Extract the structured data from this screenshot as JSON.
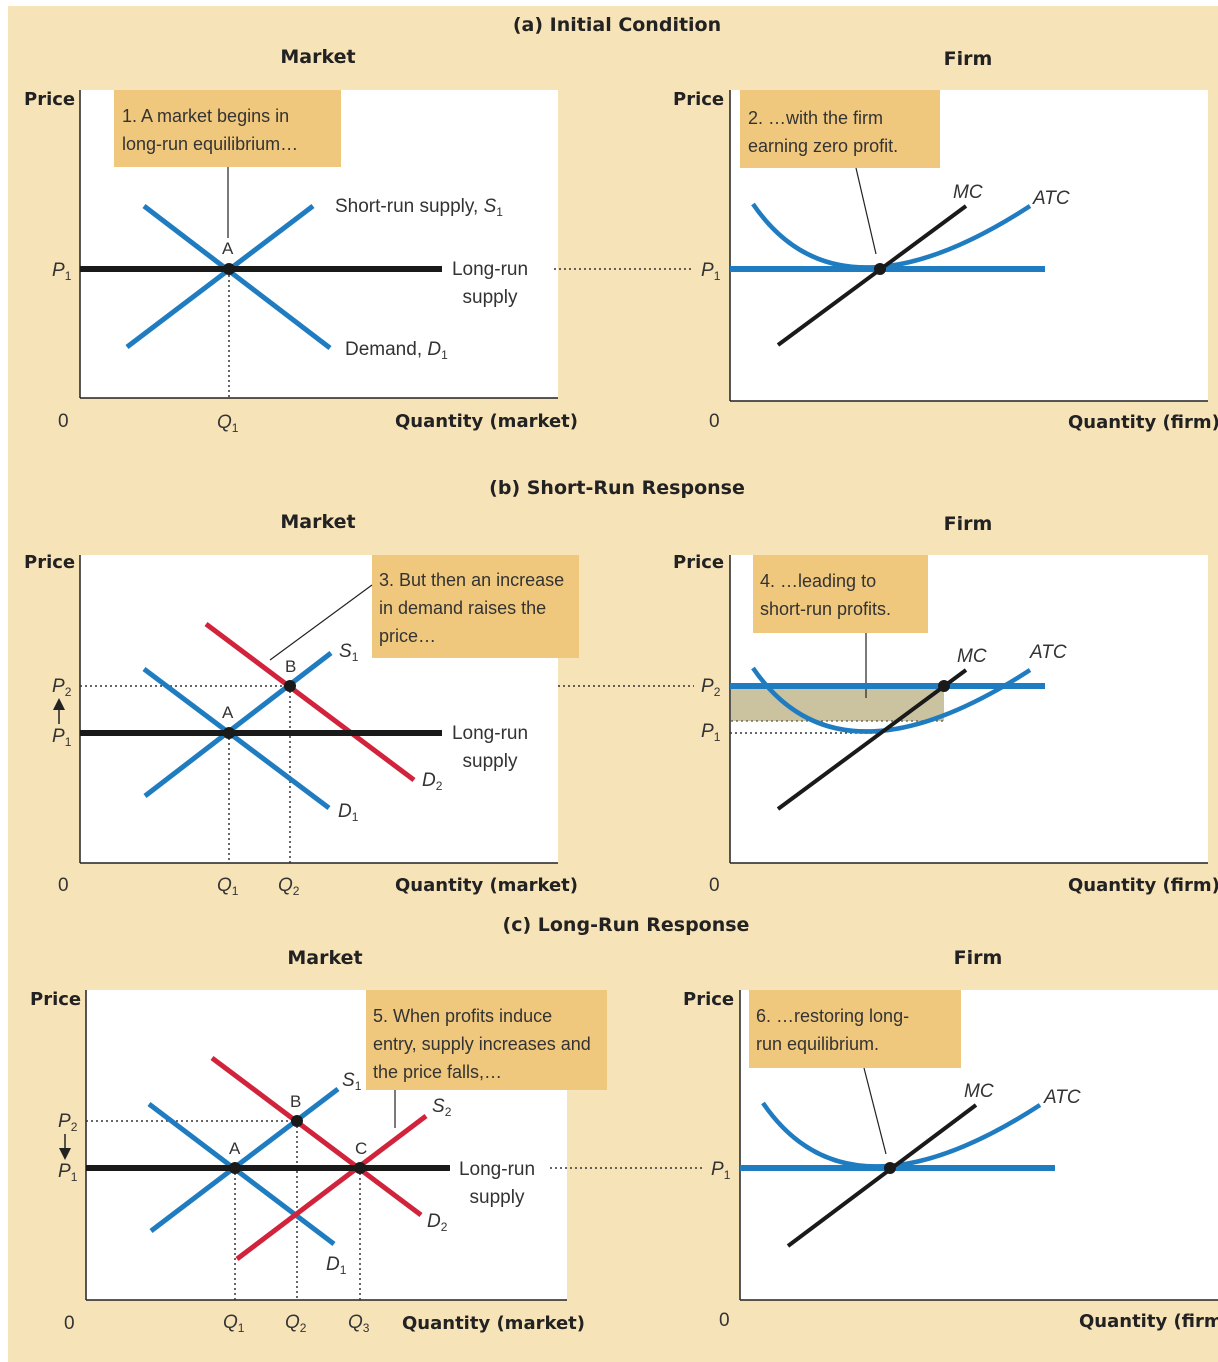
{
  "colors": {
    "background": "#f7e3b8",
    "plot": "#ffffff",
    "callout": "#efc77d",
    "blue": "#1f7cc1",
    "red": "#d1233b",
    "black": "#1a1a1a",
    "profit": "#cbc3a0"
  },
  "panels": {
    "a": {
      "title": "(a) Initial Condition",
      "market": {
        "heading": "Market",
        "price_label": "Price",
        "quantity_label": "Quantity (market)",
        "origin": "0",
        "callout": [
          "1. A market begins in",
          "long-run equilibrium…"
        ],
        "supply_label": "Short-run supply, ",
        "demand_label": "Demand, ",
        "lr_supply": [
          "Long-run",
          "supply"
        ],
        "point_a": "A",
        "p1": "P",
        "q1": "Q"
      },
      "firm": {
        "heading": "Firm",
        "price_label": "Price",
        "quantity_label": "Quantity (firm)",
        "origin": "0",
        "callout": [
          "2. …with the firm",
          "earning zero profit."
        ],
        "mc": "MC",
        "atc": "ATC",
        "p1": "P"
      }
    },
    "b": {
      "title": "(b) Short-Run Response",
      "market": {
        "heading": "Market",
        "price_label": "Price",
        "quantity_label": "Quantity (market)",
        "origin": "0",
        "callout": [
          "3. But then an increase",
          "in demand raises the",
          "price…"
        ],
        "lr_supply": [
          "Long-run",
          "supply"
        ],
        "point_a": "A",
        "point_b": "B",
        "s1": "S",
        "d1": "D",
        "d2": "D",
        "p1": "P",
        "p2": "P",
        "q1": "Q",
        "q2": "Q"
      },
      "firm": {
        "heading": "Firm",
        "price_label": "Price",
        "quantity_label": "Quantity (firm)",
        "origin": "0",
        "callout": [
          "4. …leading to",
          "short-run profits."
        ],
        "mc": "MC",
        "atc": "ATC",
        "p1": "P",
        "p2": "P"
      }
    },
    "c": {
      "title": "(c) Long-Run Response",
      "market": {
        "heading": "Market",
        "price_label": "Price",
        "quantity_label": "Quantity (market)",
        "origin": "0",
        "callout": [
          "5. When profits induce",
          "entry, supply increases and",
          "the price falls,…"
        ],
        "lr_supply": [
          "Long-run",
          "supply"
        ],
        "point_a": "A",
        "point_b": "B",
        "point_c": "C",
        "s1": "S",
        "s2": "S",
        "d1": "D",
        "d2": "D",
        "p1": "P",
        "p2": "P",
        "q1": "Q",
        "q2": "Q",
        "q3": "Q"
      },
      "firm": {
        "heading": "Firm",
        "price_label": "Price",
        "quantity_label": "Quantity (firm)",
        "origin": "0",
        "callout": [
          "6. …restoring long-",
          "run equilibrium."
        ],
        "mc": "MC",
        "atc": "ATC",
        "p1": "P"
      }
    }
  },
  "subscripts": {
    "one": "1",
    "two": "2",
    "three": "3"
  }
}
